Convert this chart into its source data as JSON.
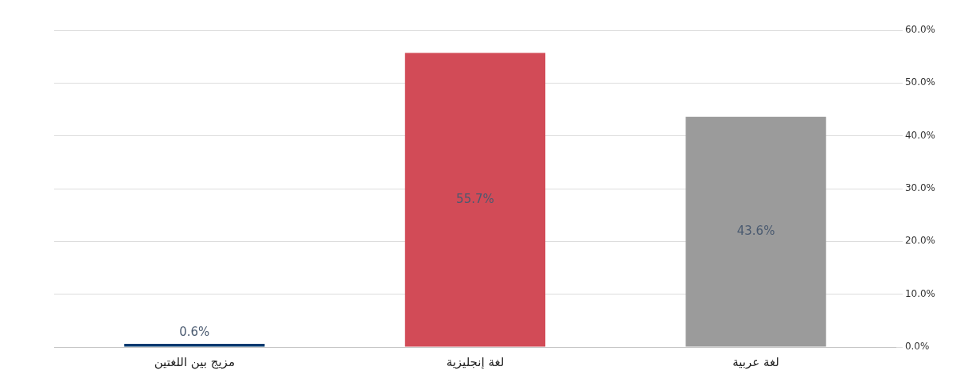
{
  "chart_data": {
    "type": "bar",
    "categories": [
      "مزيج بين اللغتين",
      "لغة إنجليزية",
      "لغة عربية"
    ],
    "values": [
      0.6,
      55.7,
      43.6
    ],
    "colors": [
      "#003a70",
      "#d24b57",
      "#9b9b9b"
    ],
    "value_labels": [
      "0.6%",
      "55.7%",
      "43.6%"
    ],
    "ylim": [
      0,
      60
    ],
    "yticks": [
      {
        "value": 0,
        "label": "0.0%"
      },
      {
        "value": 10,
        "label": "10.0%"
      },
      {
        "value": 20,
        "label": "20.0%"
      },
      {
        "value": 30,
        "label": "30.0%"
      },
      {
        "value": 40,
        "label": "40.0%"
      },
      {
        "value": 50,
        "label": "50.0%"
      },
      {
        "value": 60,
        "label": "60.0%"
      }
    ],
    "grid": "y",
    "legend": false
  }
}
